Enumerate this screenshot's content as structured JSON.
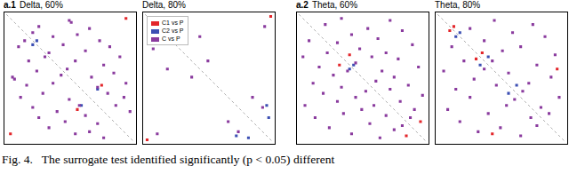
{
  "chart_data": [
    {
      "type": "scatter",
      "panel": "a.1",
      "title": "Delta, 60%",
      "xlim": [
        -1,
        62
      ],
      "ylim": [
        -1,
        62
      ],
      "tick_labels": false,
      "marker": "square",
      "series": [
        {
          "color": "#8a3b9e",
          "values": [
            [
              2,
              30
            ],
            [
              30,
              2
            ],
            [
              3,
              31
            ],
            [
              31,
              3
            ],
            [
              5,
              15
            ],
            [
              15,
              5
            ],
            [
              6,
              40
            ],
            [
              40,
              6
            ],
            [
              8,
              12
            ],
            [
              12,
              8
            ],
            [
              9,
              34
            ],
            [
              34,
              9
            ],
            [
              10,
              22
            ],
            [
              22,
              10
            ],
            [
              12,
              45
            ],
            [
              45,
              12
            ],
            [
              14,
              27
            ],
            [
              27,
              14
            ],
            [
              15,
              50
            ],
            [
              50,
              15
            ],
            [
              17,
              38
            ],
            [
              38,
              17
            ],
            [
              18,
              20
            ],
            [
              20,
              18
            ],
            [
              20,
              55
            ],
            [
              55,
              20
            ],
            [
              22,
              33
            ],
            [
              33,
              22
            ],
            [
              24,
              47
            ],
            [
              47,
              24
            ],
            [
              26,
              29
            ],
            [
              29,
              26
            ],
            [
              28,
              52
            ],
            [
              52,
              28
            ],
            [
              30,
              41
            ],
            [
              41,
              30
            ],
            [
              33,
              58
            ],
            [
              58,
              33
            ],
            [
              35,
              44
            ],
            [
              44,
              35
            ],
            [
              38,
              49
            ],
            [
              49,
              38
            ],
            [
              40,
              57
            ],
            [
              57,
              40
            ],
            [
              44,
              53
            ],
            [
              53,
              44
            ],
            [
              47,
              60
            ],
            [
              60,
              47
            ]
          ]
        },
        {
          "color": "#e3262b",
          "values": [
            [
              1,
              58
            ],
            [
              58,
              1
            ],
            [
              34,
              46
            ],
            [
              46,
              34
            ]
          ]
        },
        {
          "color": "#3c4fb3",
          "values": [
            [
              36,
              44
            ],
            [
              44,
              36
            ],
            [
              12,
              14
            ],
            [
              14,
              12
            ]
          ]
        }
      ]
    },
    {
      "type": "scatter",
      "title": "Delta, 80%",
      "xlim": [
        -1,
        62
      ],
      "ylim": [
        -1,
        62
      ],
      "tick_labels": false,
      "marker": "square",
      "legend": "upper left",
      "series": [
        {
          "name": "C1 vs P",
          "color": "#e3262b",
          "values": [
            [
              0,
              61
            ],
            [
              61,
              0
            ]
          ]
        },
        {
          "name": "C2 vs P",
          "color": "#3c4fb3",
          "values": [
            [
              44,
              59
            ],
            [
              59,
              44
            ],
            [
              50,
              60
            ],
            [
              60,
              50
            ]
          ]
        },
        {
          "name": "C vs P",
          "color": "#8a3b9e",
          "values": [
            [
              3,
              16
            ],
            [
              16,
              3
            ],
            [
              5,
              58
            ],
            [
              58,
              5
            ],
            [
              10,
              26
            ],
            [
              26,
              10
            ],
            [
              22,
              30
            ],
            [
              30,
              22
            ],
            [
              40,
              52
            ],
            [
              52,
              40
            ],
            [
              45,
              57
            ],
            [
              57,
              45
            ]
          ]
        }
      ]
    },
    {
      "type": "scatter",
      "panel": "a.2",
      "title": "Theta, 60%",
      "xlim": [
        -1,
        62
      ],
      "ylim": [
        -1,
        62
      ],
      "tick_labels": false,
      "marker": "square",
      "series": [
        {
          "color": "#8a3b9e",
          "values": [
            [
              1,
              20
            ],
            [
              20,
              1
            ],
            [
              2,
              44
            ],
            [
              44,
              2
            ],
            [
              4,
              12
            ],
            [
              12,
              4
            ],
            [
              6,
              33
            ],
            [
              33,
              6
            ],
            [
              7,
              50
            ],
            [
              50,
              7
            ],
            [
              9,
              25
            ],
            [
              25,
              9
            ],
            [
              11,
              38
            ],
            [
              38,
              11
            ],
            [
              13,
              18
            ],
            [
              18,
              13
            ],
            [
              14,
              55
            ],
            [
              55,
              14
            ],
            [
              16,
              29
            ],
            [
              29,
              16
            ],
            [
              18,
              42
            ],
            [
              42,
              18
            ],
            [
              20,
              35
            ],
            [
              35,
              20
            ],
            [
              21,
              48
            ],
            [
              48,
              21
            ],
            [
              23,
              27
            ],
            [
              27,
              23
            ],
            [
              25,
              58
            ],
            [
              58,
              25
            ],
            [
              27,
              40
            ],
            [
              40,
              27
            ],
            [
              30,
              46
            ],
            [
              46,
              30
            ],
            [
              32,
              37
            ],
            [
              37,
              32
            ],
            [
              34,
              53
            ],
            [
              53,
              34
            ],
            [
              36,
              44
            ],
            [
              44,
              36
            ],
            [
              39,
              60
            ],
            [
              60,
              39
            ],
            [
              42,
              49
            ],
            [
              49,
              42
            ],
            [
              46,
              56
            ],
            [
              56,
              46
            ],
            [
              50,
              54
            ],
            [
              54,
              50
            ]
          ]
        },
        {
          "color": "#e3262b",
          "values": [
            [
              19,
              24
            ],
            [
              24,
              19
            ],
            [
              52,
              59
            ],
            [
              59,
              52
            ]
          ]
        },
        {
          "color": "#3c4fb3",
          "values": [
            [
              24,
              26
            ],
            [
              26,
              24
            ]
          ]
        }
      ]
    },
    {
      "type": "scatter",
      "title": "Theta, 80%",
      "xlim": [
        -1,
        62
      ],
      "ylim": [
        -1,
        62
      ],
      "tick_labels": false,
      "marker": "square",
      "series": [
        {
          "color": "#8a3b9e",
          "values": [
            [
              2,
              27
            ],
            [
              27,
              2
            ],
            [
              4,
              46
            ],
            [
              46,
              4
            ],
            [
              6,
              15
            ],
            [
              15,
              6
            ],
            [
              8,
              36
            ],
            [
              36,
              8
            ],
            [
              10,
              52
            ],
            [
              52,
              10
            ],
            [
              12,
              22
            ],
            [
              22,
              12
            ],
            [
              15,
              40
            ],
            [
              40,
              15
            ],
            [
              17,
              31
            ],
            [
              31,
              17
            ],
            [
              19,
              57
            ],
            [
              57,
              19
            ],
            [
              22,
              26
            ],
            [
              26,
              22
            ],
            [
              24,
              48
            ],
            [
              48,
              24
            ],
            [
              28,
              34
            ],
            [
              34,
              28
            ],
            [
              30,
              55
            ],
            [
              55,
              30
            ],
            [
              33,
              44
            ],
            [
              44,
              33
            ],
            [
              37,
              41
            ],
            [
              41,
              37
            ],
            [
              40,
              59
            ],
            [
              59,
              40
            ],
            [
              45,
              50
            ],
            [
              50,
              45
            ],
            [
              48,
              54
            ],
            [
              54,
              48
            ]
          ]
        },
        {
          "color": "#e3262b",
          "values": [
            [
              5,
              7
            ],
            [
              7,
              5
            ],
            [
              18,
              21
            ],
            [
              21,
              18
            ],
            [
              26,
              58
            ],
            [
              58,
              26
            ]
          ]
        },
        {
          "color": "#3c4fb3",
          "values": [
            [
              20,
              24
            ],
            [
              24,
              20
            ],
            [
              34,
              38
            ],
            [
              38,
              34
            ],
            [
              8,
              10
            ],
            [
              10,
              8
            ]
          ]
        }
      ]
    }
  ],
  "caption": "Fig. 4.   The surrogate test identified significantly (p < 0.05) different"
}
